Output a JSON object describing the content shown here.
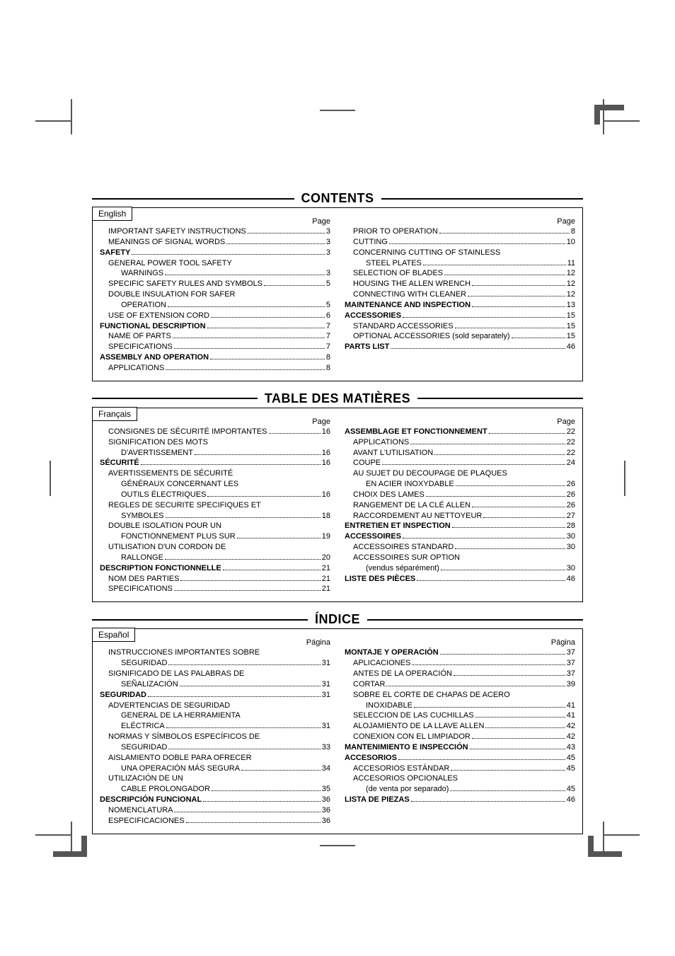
{
  "sections": [
    {
      "title": "CONTENTS",
      "lang_tab": "English",
      "page_word": "Page",
      "left": [
        {
          "label": "IMPORTANT SAFETY INSTRUCTIONS",
          "page": "3",
          "indent": 1
        },
        {
          "label": "MEANINGS OF SIGNAL WORDS",
          "page": "3",
          "indent": 1
        },
        {
          "label": "SAFETY",
          "page": "3",
          "indent": 0,
          "bold": true
        },
        {
          "label": "GENERAL POWER TOOL SAFETY",
          "indent": 1,
          "nowrap": true
        },
        {
          "label": "WARNINGS",
          "page": "3",
          "indent": 2
        },
        {
          "label": "SPECIFIC SAFETY RULES AND SYMBOLS",
          "page": "5",
          "indent": 1
        },
        {
          "label": "DOUBLE INSULATION FOR SAFER",
          "indent": 1,
          "nowrap": true
        },
        {
          "label": "OPERATION",
          "page": "5",
          "indent": 2
        },
        {
          "label": "USE OF EXTENSION CORD",
          "page": "6",
          "indent": 1
        },
        {
          "label": "FUNCTIONAL DESCRIPTION",
          "page": "7",
          "indent": 0,
          "bold": true
        },
        {
          "label": "NAME OF PARTS",
          "page": "7",
          "indent": 1
        },
        {
          "label": "SPECIFICATIONS",
          "page": "7",
          "indent": 1
        },
        {
          "label": "ASSEMBLY AND OPERATION",
          "page": "8",
          "indent": 0,
          "bold": true
        },
        {
          "label": "APPLICATIONS",
          "page": "8",
          "indent": 1
        }
      ],
      "right": [
        {
          "label": "PRIOR TO OPERATION",
          "page": "8",
          "indent": 1
        },
        {
          "label": "CUTTING",
          "page": "10",
          "indent": 1
        },
        {
          "label": "CONCERNING CUTTING OF STAINLESS",
          "indent": 1,
          "nowrap": true
        },
        {
          "label": "STEEL PLATES",
          "page": "11",
          "indent": 2
        },
        {
          "label": "SELECTION OF BLADES",
          "page": "12",
          "indent": 1
        },
        {
          "label": "HOUSING THE ALLEN WRENCH",
          "page": "12",
          "indent": 1
        },
        {
          "label": "CONNECTING WITH CLEANER",
          "page": "12",
          "indent": 1
        },
        {
          "label": "MAINTENANCE AND INSPECTION",
          "page": "13",
          "indent": 0,
          "bold": true
        },
        {
          "label": "ACCESSORIES",
          "page": "15",
          "indent": 0,
          "bold": true
        },
        {
          "label": "STANDARD ACCESSORIES",
          "page": "15",
          "indent": 1
        },
        {
          "label": "OPTIONAL ACCESSORIES (sold separately)",
          "page": "15",
          "indent": 1
        },
        {
          "label": "PARTS LIST",
          "page": "46",
          "indent": 0,
          "bold": true
        }
      ]
    },
    {
      "title": "TABLE DES MATIÈRES",
      "lang_tab": "Français",
      "page_word": "Page",
      "left": [
        {
          "label": "CONSIGNES DE SÉCURITÉ IMPORTANTES",
          "page": "16",
          "indent": 1
        },
        {
          "label": "SIGNIFICATION DES MOTS",
          "indent": 1,
          "nowrap": true
        },
        {
          "label": "D'AVERTISSEMENT",
          "page": "16",
          "indent": 2
        },
        {
          "label": "SÉCURITÉ",
          "page": "16",
          "indent": 0,
          "bold": true
        },
        {
          "label": "AVERTISSEMENTS DE SÉCURITÉ",
          "indent": 1,
          "nowrap": true
        },
        {
          "label": "GÉNÉRAUX CONCERNANT LES",
          "indent": 2,
          "nowrap": true
        },
        {
          "label": "OUTILS ÉLECTRIQUES",
          "page": "16",
          "indent": 2
        },
        {
          "label": "REGLES DE SECURITE SPECIFIQUES ET",
          "indent": 1,
          "nowrap": true
        },
        {
          "label": "SYMBOLES",
          "page": "18",
          "indent": 2
        },
        {
          "label": "DOUBLE ISOLATION POUR UN",
          "indent": 1,
          "nowrap": true
        },
        {
          "label": "FONCTIONNEMENT PLUS SUR",
          "page": "19",
          "indent": 2
        },
        {
          "label": "UTILISATION D'UN CORDON DE",
          "indent": 1,
          "nowrap": true
        },
        {
          "label": "RALLONGE",
          "page": "20",
          "indent": 2
        },
        {
          "label": "DESCRIPTION FONCTIONNELLE",
          "page": "21",
          "indent": 0,
          "bold": true
        },
        {
          "label": "NOM DES PARTIES",
          "page": "21",
          "indent": 1
        },
        {
          "label": "SPECIFICATIONS",
          "page": "21",
          "indent": 1
        }
      ],
      "right": [
        {
          "label": "ASSEMBLAGE ET FONCTIONNEMENT",
          "page": "22",
          "indent": 0,
          "bold": true
        },
        {
          "label": "APPLICATIONS",
          "page": "22",
          "indent": 1
        },
        {
          "label": "AVANT L'UTILISATION",
          "page": "22",
          "indent": 1
        },
        {
          "label": "COUPE",
          "page": "24",
          "indent": 1
        },
        {
          "label": "AU SUJET DU DECOUPAGE DE PLAQUES",
          "indent": 1,
          "nowrap": true
        },
        {
          "label": "EN ACIER INOXYDABLE",
          "page": "26",
          "indent": 2
        },
        {
          "label": "CHOIX DES LAMES",
          "page": "26",
          "indent": 1
        },
        {
          "label": "RANGEMENT DE LA CLÉ ALLEN",
          "page": "26",
          "indent": 1
        },
        {
          "label": "RACCORDEMENT AU NETTOYEUR",
          "page": "27",
          "indent": 1
        },
        {
          "label": "ENTRETIEN ET INSPECTION",
          "page": "28",
          "indent": 0,
          "bold": true
        },
        {
          "label": "ACCESSOIRES",
          "page": "30",
          "indent": 0,
          "bold": true
        },
        {
          "label": "ACCESSOIRES STANDARD",
          "page": "30",
          "indent": 1
        },
        {
          "label": "ACCESSOIRES SUR OPTION",
          "indent": 1,
          "nowrap": true
        },
        {
          "label": "(vendus séparément)",
          "page": "30",
          "indent": 2
        },
        {
          "label": "LISTE DES PIÈCES",
          "page": "46",
          "indent": 0,
          "bold": true
        }
      ]
    },
    {
      "title": "ÍNDICE",
      "lang_tab": "Español",
      "page_word": "Página",
      "left": [
        {
          "label": "INSTRUCCIONES IMPORTANTES SOBRE",
          "indent": 1,
          "nowrap": true
        },
        {
          "label": "SEGURIDAD",
          "page": "31",
          "indent": 2
        },
        {
          "label": "SIGNIFICADO DE LAS PALABRAS DE",
          "indent": 1,
          "nowrap": true
        },
        {
          "label": "SEÑALIZACIÓN",
          "page": "31",
          "indent": 2
        },
        {
          "label": "SEGURIDAD",
          "page": "31",
          "indent": 0,
          "bold": true
        },
        {
          "label": "ADVERTENCIAS DE SEGURIDAD",
          "indent": 1,
          "nowrap": true
        },
        {
          "label": "GENERAL DE LA HERRAMIENTA",
          "indent": 2,
          "nowrap": true
        },
        {
          "label": "ELÉCTRICA",
          "page": "31",
          "indent": 2
        },
        {
          "label": "NORMAS Y SÍMBOLOS ESPECÍFICOS DE",
          "indent": 1,
          "nowrap": true
        },
        {
          "label": "SEGURIDAD",
          "page": "33",
          "indent": 2
        },
        {
          "label": "AISLAMIENTO DOBLE PARA OFRECER",
          "indent": 1,
          "nowrap": true
        },
        {
          "label": "UNA OPERACIÓN MÁS SEGURA",
          "page": "34",
          "indent": 2
        },
        {
          "label": "UTILIZACIÓN DE UN",
          "indent": 1,
          "nowrap": true
        },
        {
          "label": "CABLE PROLONGADOR",
          "page": "35",
          "indent": 2
        },
        {
          "label": "DESCRIPCIÓN FUNCIONAL",
          "page": "36",
          "indent": 0,
          "bold": true
        },
        {
          "label": "NOMENCLATURA",
          "page": "36",
          "indent": 1
        },
        {
          "label": "ESPECIFICACIONES",
          "page": "36",
          "indent": 1
        }
      ],
      "right": [
        {
          "label": "MONTAJE Y OPERACIÓN",
          "page": "37",
          "indent": 0,
          "bold": true
        },
        {
          "label": "APLICACIONES",
          "page": "37",
          "indent": 1
        },
        {
          "label": "ANTES DE LA OPERACIÓN",
          "page": "37",
          "indent": 1
        },
        {
          "label": "CORTAR",
          "page": "39",
          "indent": 1
        },
        {
          "label": "SOBRE EL CORTE DE CHAPAS DE ACERO",
          "indent": 1,
          "nowrap": true
        },
        {
          "label": "INOXIDABLE",
          "page": "41",
          "indent": 2
        },
        {
          "label": "SELECCION DE LAS CUCHILLAS",
          "page": "41",
          "indent": 1
        },
        {
          "label": "ALOJAMIENTO DE LA LLAVE ALLEN",
          "page": "42",
          "indent": 1
        },
        {
          "label": "CONEXION CON EL LIMPIADOR",
          "page": "42",
          "indent": 1
        },
        {
          "label": "MANTENIMIENTO E INSPECCIÓN",
          "page": "43",
          "indent": 0,
          "bold": true
        },
        {
          "label": "ACCESORIOS",
          "page": "45",
          "indent": 0,
          "bold": true
        },
        {
          "label": "ACCESORIOS ESTÁNDAR",
          "page": "45",
          "indent": 1
        },
        {
          "label": "ACCESORIOS OPCIONALES",
          "indent": 1,
          "nowrap": true
        },
        {
          "label": "(de venta por separado)",
          "page": "45",
          "indent": 2
        },
        {
          "label": "LISTA DE PIEZAS",
          "page": "46",
          "indent": 0,
          "bold": true
        }
      ]
    }
  ]
}
